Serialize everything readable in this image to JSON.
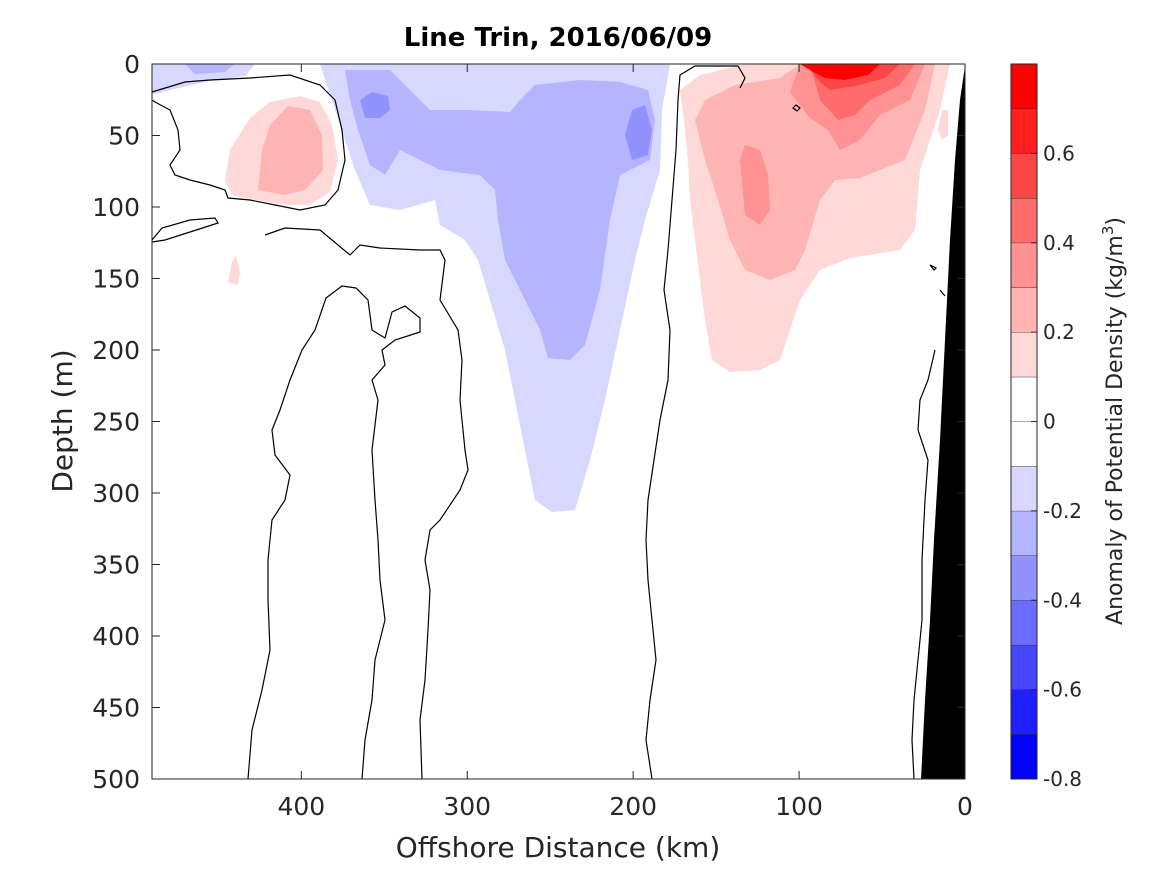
{
  "chart_data": {
    "type": "heatmap",
    "title": "Line Trin, 2016/06/09",
    "xlabel": "Offshore Distance (km)",
    "ylabel": "Depth (m)",
    "colorbar_label_prefix": "Anomaly of Potential Density (kg/m",
    "colorbar_label_sup": "3",
    "colorbar_label_suffix": ")",
    "xlim": [
      490,
      0
    ],
    "ylim": [
      500,
      0
    ],
    "x_ticks": [
      400,
      300,
      200,
      100,
      0
    ],
    "y_ticks": [
      0,
      50,
      100,
      150,
      200,
      250,
      300,
      350,
      400,
      450,
      500
    ],
    "colorbar_range": [
      -0.8,
      0.8
    ],
    "colorbar_ticks": [
      -0.8,
      -0.6,
      -0.4,
      -0.2,
      0,
      0.2,
      0.4,
      0.6
    ],
    "colorbar_tick_labels": [
      "-0.8",
      "-0.6",
      "-0.4",
      "-0.2",
      "0",
      "0.2",
      "0.4",
      "0.6"
    ],
    "colorbar_levels": [
      "#0000ff",
      "#2020ff",
      "#4646ff",
      "#6c6cff",
      "#9292ff",
      "#b4b4ff",
      "#d8d8ff",
      "#ffffff",
      "#ffffff",
      "#ffd8d8",
      "#ffb4b4",
      "#ff9292",
      "#ff6c6c",
      "#ff4646",
      "#ff2020",
      "#ff0000"
    ],
    "bathymetry_color": "#000000",
    "contour_level": 0,
    "features": [
      {
        "name": "positive-anomaly-near-shore",
        "x_range": [
          15,
          185
        ],
        "depth_range": [
          0,
          215
        ],
        "peak_value": 0.8,
        "peak_location": [
          75,
          5
        ]
      },
      {
        "name": "negative-anomaly-mid-shelf",
        "x_range": [
          180,
          330
        ],
        "depth_range": [
          0,
          315
        ],
        "peak_value": -0.3
      },
      {
        "name": "positive-anomaly-offshore",
        "x_range": [
          405,
          455
        ],
        "depth_range": [
          25,
          100
        ],
        "peak_value": 0.2
      },
      {
        "name": "negative-anomaly-offshore-surface",
        "x_range": [
          450,
          490
        ],
        "depth_range": [
          0,
          20
        ],
        "peak_value": -0.1
      }
    ]
  }
}
